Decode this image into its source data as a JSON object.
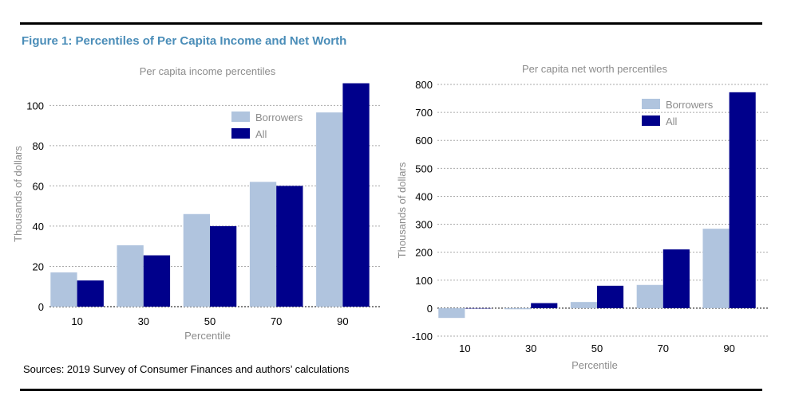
{
  "figure_title": "Figure 1: Percentiles of Per Capita Income and Net Worth",
  "source": "Sources: 2019 Survey of Consumer Finances and authors’ calculations",
  "colors": {
    "borrowers": "#b0c4de",
    "all": "#00008b",
    "title": "#4a8db8"
  },
  "chart_data": [
    {
      "type": "bar",
      "title": "Per capita income percentiles",
      "xlabel": "Percentile",
      "ylabel": "Thousands of dollars",
      "categories": [
        "10",
        "30",
        "50",
        "70",
        "90"
      ],
      "series": [
        {
          "name": "Borrowers",
          "values": [
            17,
            30.5,
            46,
            62,
            96.5
          ]
        },
        {
          "name": "All",
          "values": [
            13,
            25.5,
            40,
            60,
            111
          ]
        }
      ],
      "yticks": [
        "0",
        "20",
        "40",
        "60",
        "80",
        "100"
      ],
      "ylim": [
        0,
        112
      ],
      "grid": true,
      "legend": "top-right"
    },
    {
      "type": "bar",
      "title": "Per capita net worth percentiles",
      "xlabel": "Percentile",
      "ylabel": "Thousands of dollars",
      "categories": [
        "10",
        "30",
        "50",
        "70",
        "90"
      ],
      "series": [
        {
          "name": "Borrowers",
          "values": [
            -35,
            -4,
            22,
            83,
            284
          ]
        },
        {
          "name": "All",
          "values": [
            0,
            18,
            80,
            210,
            772
          ]
        }
      ],
      "yticks": [
        "-100",
        "0",
        "100",
        "200",
        "300",
        "400",
        "500",
        "600",
        "700",
        "800"
      ],
      "ylim": [
        -100,
        800
      ],
      "grid": true,
      "legend": "top-right"
    }
  ]
}
